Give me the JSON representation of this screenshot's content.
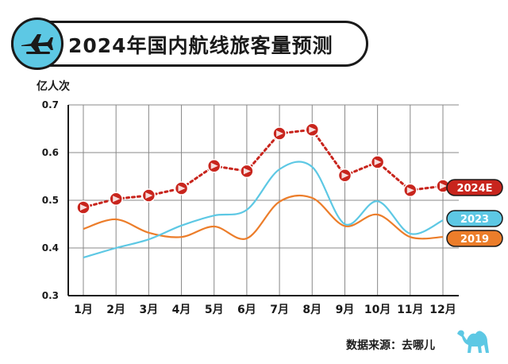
{
  "header": {
    "title": "2024年国内航线旅客量预测"
  },
  "icons": {
    "badge": "airplane-icon",
    "logo": "camel-icon"
  },
  "source_text": "数据来源：去哪儿",
  "colors": {
    "badge_bg": "#5dc8e4",
    "series_2024E": "#c8251d",
    "series_2023": "#5dc8e4",
    "series_2019": "#ec7d2a",
    "grid": "#333333"
  },
  "chart_data": {
    "type": "line",
    "title": "2024年国内航线旅客量预测",
    "xlabel": "",
    "ylabel": "亿人次",
    "categories": [
      "1月",
      "2月",
      "3月",
      "4月",
      "5月",
      "6月",
      "7月",
      "8月",
      "9月",
      "10月",
      "11月",
      "12月"
    ],
    "ylim": [
      0.3,
      0.7
    ],
    "yticks": [
      "0.3",
      "0.4",
      "0.5",
      "0.6",
      "0.7"
    ],
    "grid": true,
    "legend": "right, labels at line ends",
    "series": [
      {
        "name": "2024E",
        "style": "dotted with triangle-circle markers",
        "values": [
          0.485,
          0.503,
          0.51,
          0.525,
          0.572,
          0.561,
          0.64,
          0.648,
          0.552,
          0.58,
          0.521,
          0.53
        ]
      },
      {
        "name": "2023",
        "style": "smooth line",
        "values": [
          0.38,
          0.4,
          0.418,
          0.447,
          0.468,
          0.48,
          0.565,
          0.57,
          0.45,
          0.498,
          0.43,
          0.458
        ]
      },
      {
        "name": "2019",
        "style": "smooth line",
        "values": [
          0.44,
          0.46,
          0.432,
          0.423,
          0.445,
          0.42,
          0.497,
          0.505,
          0.446,
          0.47,
          0.423,
          0.423
        ]
      }
    ]
  }
}
